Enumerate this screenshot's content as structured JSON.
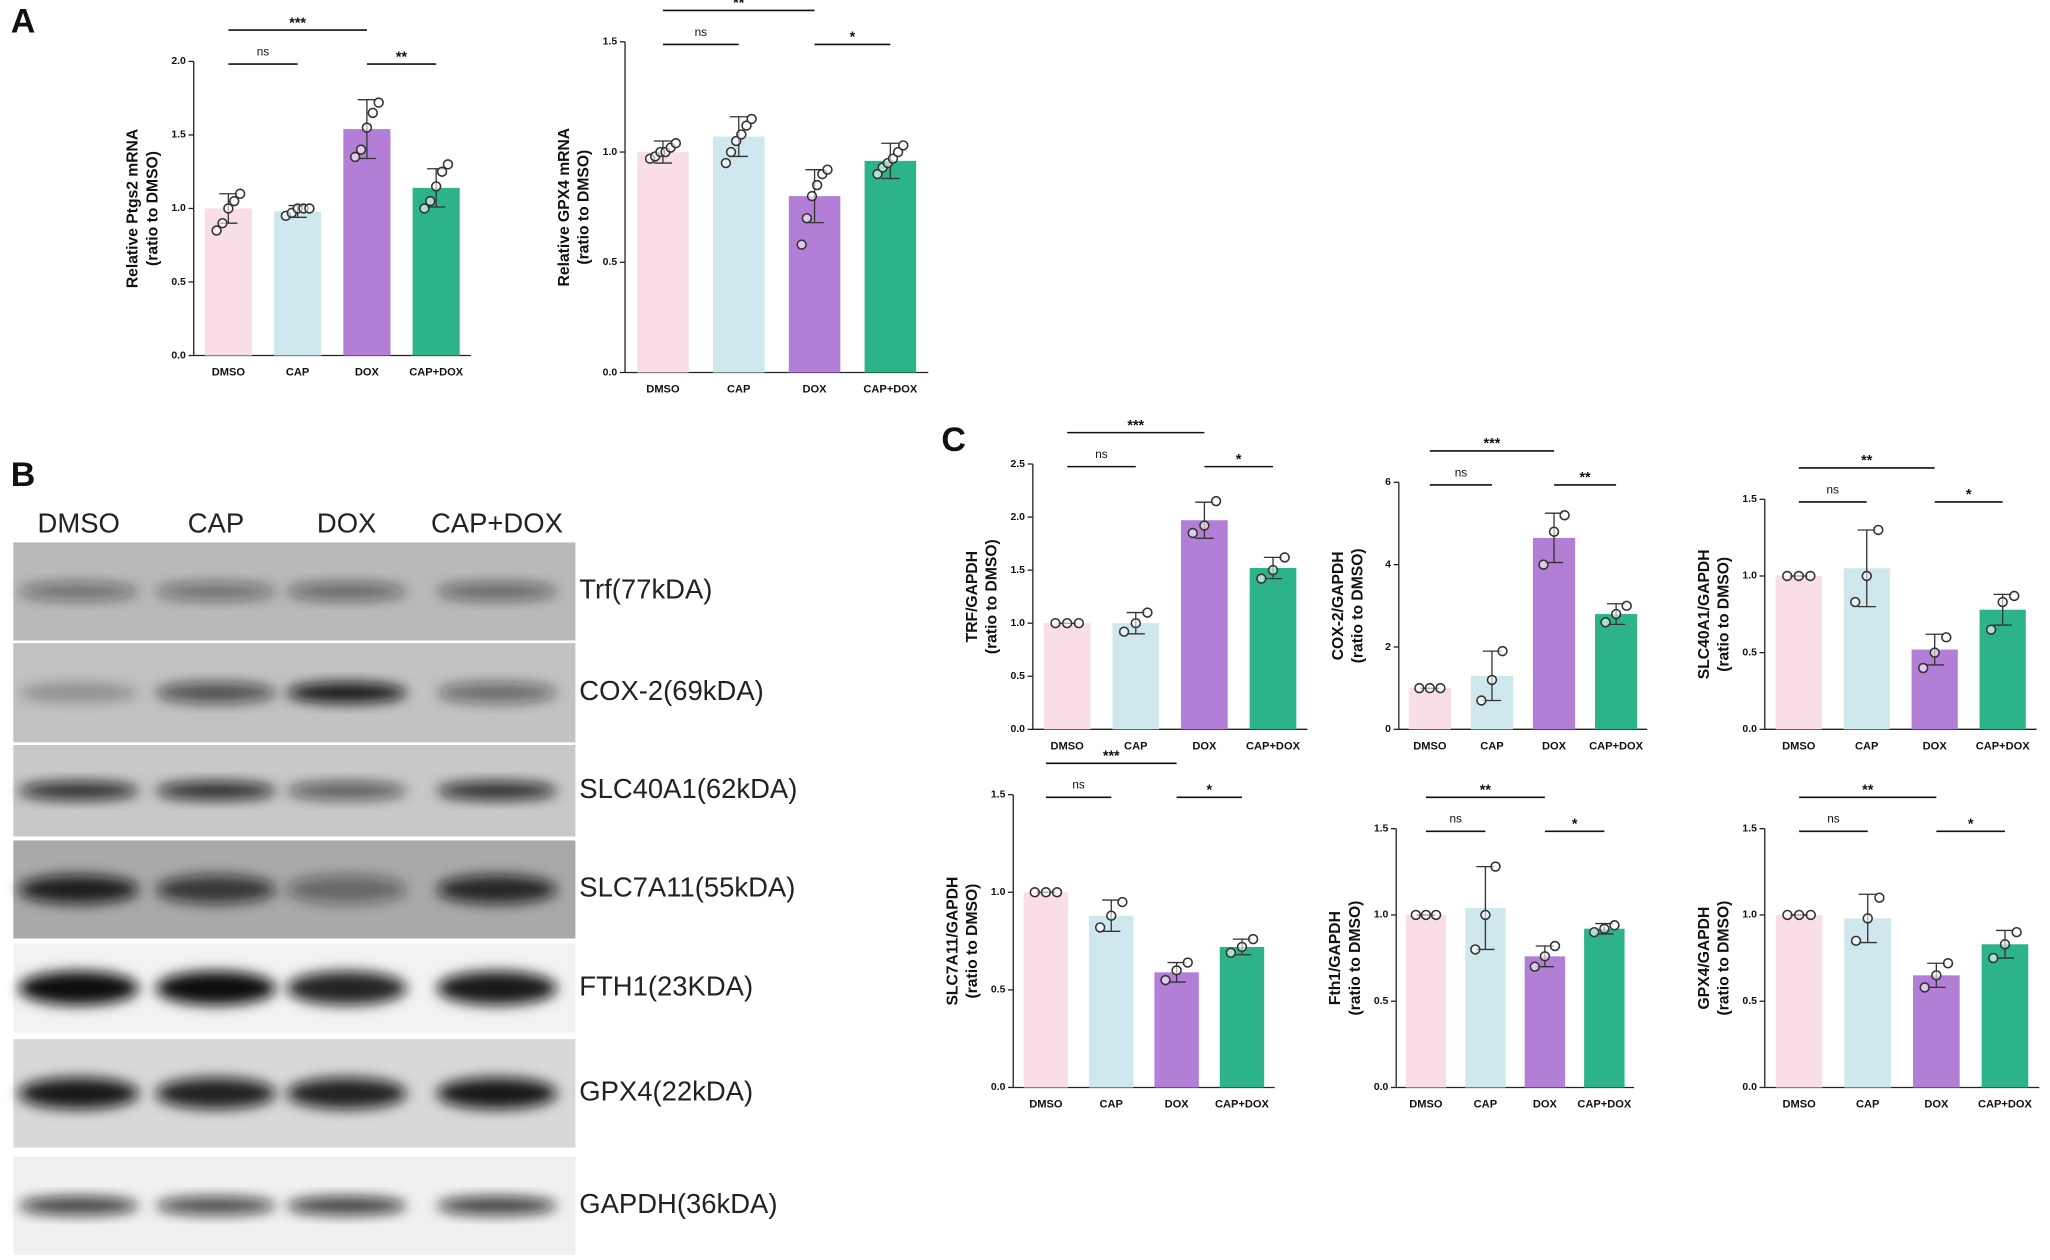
{
  "panel_labels": [
    "A",
    "B",
    "C"
  ],
  "blot": {
    "lanes": [
      "DMSO",
      "CAP",
      "DOX",
      "CAP+DOX"
    ],
    "bands": [
      "Trf(77kDA)",
      "COX-2(69kDA)",
      "SLC40A1(62kDA)",
      "SLC7A11(55kDA)",
      "FTH1(23KDA)",
      "GPX4(22kDA)",
      "GAPDH(36kDA)"
    ]
  },
  "chart_data": [
    {
      "type": "bar",
      "ylabel": [
        "Relative Ptgs2 mRNA",
        "(ratio to DMSO)"
      ],
      "categories": [
        "DMSO",
        "CAP",
        "DOX",
        "CAP+DOX"
      ],
      "colors": [
        "#f9dde9",
        "#cfe8ee",
        "#b27ed6",
        "#2db38a"
      ],
      "values": [
        1.0,
        0.98,
        1.54,
        1.14
      ],
      "errors": [
        0.1,
        0.04,
        0.2,
        0.13
      ],
      "points": [
        [
          0.85,
          0.9,
          1.0,
          1.05,
          1.1
        ],
        [
          0.95,
          0.97,
          1.0,
          1.0,
          1.0
        ],
        [
          1.35,
          1.4,
          1.55,
          1.65,
          1.72
        ],
        [
          1.0,
          1.05,
          1.15,
          1.25,
          1.3
        ]
      ],
      "ylim": [
        0,
        2.0
      ],
      "yticks": [
        {
          "value": 0,
          "label": "0.0"
        },
        {
          "value": 0.5,
          "label": "0.5"
        },
        {
          "value": 1,
          "label": "1.0"
        },
        {
          "value": 1.5,
          "label": "1.5"
        },
        {
          "value": 2,
          "label": "2.0"
        }
      ],
      "significance": [
        {
          "from": 0,
          "to": 1,
          "label": "ns"
        },
        {
          "from": 0,
          "to": 2,
          "label": "***"
        },
        {
          "from": 2,
          "to": 3,
          "label": "**"
        }
      ]
    },
    {
      "type": "bar",
      "ylabel": [
        "Relative GPX4 mRNA",
        "(ratio to DMSO)"
      ],
      "categories": [
        "DMSO",
        "CAP",
        "DOX",
        "CAP+DOX"
      ],
      "colors": [
        "#f9dde9",
        "#cfe8ee",
        "#b27ed6",
        "#2db38a"
      ],
      "values": [
        1.0,
        1.07,
        0.8,
        0.96
      ],
      "errors": [
        0.05,
        0.09,
        0.12,
        0.08
      ],
      "points": [
        [
          0.97,
          0.98,
          1.0,
          1.0,
          1.02,
          1.04
        ],
        [
          0.95,
          1.0,
          1.05,
          1.08,
          1.12,
          1.15
        ],
        [
          0.58,
          0.7,
          0.8,
          0.85,
          0.9,
          0.92
        ],
        [
          0.9,
          0.93,
          0.95,
          0.97,
          1.0,
          1.03
        ]
      ],
      "ylim": [
        0,
        1.5
      ],
      "yticks": [
        {
          "value": 0,
          "label": "0.0"
        },
        {
          "value": 0.5,
          "label": "0.5"
        },
        {
          "value": 1,
          "label": "1.0"
        },
        {
          "value": 1.5,
          "label": "1.5"
        }
      ],
      "significance": [
        {
          "from": 0,
          "to": 1,
          "label": "ns"
        },
        {
          "from": 0,
          "to": 2,
          "label": "**"
        },
        {
          "from": 2,
          "to": 3,
          "label": "*"
        }
      ]
    },
    {
      "type": "bar",
      "ylabel": [
        "TRF/GAPDH",
        "(ratio to DMSO)"
      ],
      "categories": [
        "DMSO",
        "CAP",
        "DOX",
        "CAP+DOX"
      ],
      "colors": [
        "#f9dde9",
        "#cfe8ee",
        "#b27ed6",
        "#2db38a"
      ],
      "values": [
        1.0,
        1.0,
        1.97,
        1.52
      ],
      "errors": [
        0,
        0.1,
        0.17,
        0.1
      ],
      "points": [
        [
          1,
          1,
          1
        ],
        [
          0.92,
          1.0,
          1.1
        ],
        [
          1.85,
          1.92,
          2.15
        ],
        [
          1.42,
          1.5,
          1.62
        ]
      ],
      "ylim": [
        0,
        2.5
      ],
      "yticks": [
        {
          "value": 0,
          "label": "0.0"
        },
        {
          "value": 0.5,
          "label": "0.5"
        },
        {
          "value": 1,
          "label": "1.0"
        },
        {
          "value": 1.5,
          "label": "1.5"
        },
        {
          "value": 2,
          "label": "2.0"
        },
        {
          "value": 2.5,
          "label": "2.5"
        }
      ],
      "significance": [
        {
          "from": 0,
          "to": 1,
          "label": "ns"
        },
        {
          "from": 0,
          "to": 2,
          "label": "***"
        },
        {
          "from": 2,
          "to": 3,
          "label": "*"
        }
      ]
    },
    {
      "type": "bar",
      "ylabel": [
        "COX-2/GAPDH",
        "(ratio to DMSO)"
      ],
      "categories": [
        "DMSO",
        "CAP",
        "DOX",
        "CAP+DOX"
      ],
      "colors": [
        "#f9dde9",
        "#cfe8ee",
        "#b27ed6",
        "#2db38a"
      ],
      "values": [
        1.0,
        1.3,
        4.65,
        2.8
      ],
      "errors": [
        0,
        0.6,
        0.6,
        0.25
      ],
      "points": [
        [
          1,
          1,
          1
        ],
        [
          0.7,
          1.2,
          1.9
        ],
        [
          4.0,
          4.8,
          5.2
        ],
        [
          2.6,
          2.8,
          3.0
        ]
      ],
      "ylim": [
        0,
        6
      ],
      "yticks": [
        0,
        2,
        4,
        6
      ],
      "significance": [
        {
          "from": 0,
          "to": 1,
          "label": "ns"
        },
        {
          "from": 0,
          "to": 2,
          "label": "***"
        },
        {
          "from": 2,
          "to": 3,
          "label": "**"
        }
      ]
    },
    {
      "type": "bar",
      "ylabel": [
        "SLC40A1/GAPDH",
        "(ratio to DMSO)"
      ],
      "categories": [
        "DMSO",
        "CAP",
        "DOX",
        "CAP+DOX"
      ],
      "colors": [
        "#f9dde9",
        "#cfe8ee",
        "#b27ed6",
        "#2db38a"
      ],
      "values": [
        1.0,
        1.05,
        0.52,
        0.78
      ],
      "errors": [
        0,
        0.25,
        0.1,
        0.1
      ],
      "points": [
        [
          1,
          1,
          1
        ],
        [
          0.83,
          1.0,
          1.3
        ],
        [
          0.4,
          0.5,
          0.6
        ],
        [
          0.65,
          0.83,
          0.87
        ]
      ],
      "ylim": [
        0,
        1.5
      ],
      "yticks": [
        {
          "value": 0,
          "label": "0.0"
        },
        {
          "value": 0.5,
          "label": "0.5"
        },
        {
          "value": 1,
          "label": "1.0"
        },
        {
          "value": 1.5,
          "label": "1.5"
        }
      ],
      "significance": [
        {
          "from": 0,
          "to": 1,
          "label": "ns"
        },
        {
          "from": 0,
          "to": 2,
          "label": "**"
        },
        {
          "from": 2,
          "to": 3,
          "label": "*"
        }
      ]
    },
    {
      "type": "bar",
      "ylabel": [
        "SLC7A11/GAPDH",
        "(ratio to DMSO)"
      ],
      "categories": [
        "DMSO",
        "CAP",
        "DOX",
        "CAP+DOX"
      ],
      "colors": [
        "#f9dde9",
        "#cfe8ee",
        "#b27ed6",
        "#2db38a"
      ],
      "values": [
        1.0,
        0.88,
        0.59,
        0.72
      ],
      "errors": [
        0,
        0.08,
        0.05,
        0.04
      ],
      "points": [
        [
          1,
          1,
          1
        ],
        [
          0.82,
          0.88,
          0.95
        ],
        [
          0.55,
          0.6,
          0.64
        ],
        [
          0.69,
          0.72,
          0.76
        ]
      ],
      "ylim": [
        0,
        1.5
      ],
      "yticks": [
        {
          "value": 0,
          "label": "0.0"
        },
        {
          "value": 0.5,
          "label": "0.5"
        },
        {
          "value": 1,
          "label": "1.0"
        },
        {
          "value": 1.5,
          "label": "1.5"
        }
      ],
      "significance": [
        {
          "from": 0,
          "to": 1,
          "label": "ns"
        },
        {
          "from": 0,
          "to": 2,
          "label": "***"
        },
        {
          "from": 2,
          "to": 3,
          "label": "*"
        }
      ]
    },
    {
      "type": "bar",
      "ylabel": [
        "Fth1/GAPDH",
        "(ratio to DMSO)"
      ],
      "categories": [
        "DMSO",
        "CAP",
        "DOX",
        "CAP+DOX"
      ],
      "colors": [
        "#f9dde9",
        "#cfe8ee",
        "#b27ed6",
        "#2db38a"
      ],
      "values": [
        1.0,
        1.04,
        0.76,
        0.92
      ],
      "errors": [
        0,
        0.24,
        0.06,
        0.03
      ],
      "points": [
        [
          1,
          1,
          1
        ],
        [
          0.8,
          1.0,
          1.28
        ],
        [
          0.7,
          0.76,
          0.82
        ],
        [
          0.9,
          0.92,
          0.94
        ]
      ],
      "ylim": [
        0,
        1.5
      ],
      "yticks": [
        {
          "value": 0,
          "label": "0.0"
        },
        {
          "value": 0.5,
          "label": "0.5"
        },
        {
          "value": 1,
          "label": "1.0"
        },
        {
          "value": 1.5,
          "label": "1.5"
        }
      ],
      "significance": [
        {
          "from": 0,
          "to": 1,
          "label": "ns"
        },
        {
          "from": 0,
          "to": 2,
          "label": "**"
        },
        {
          "from": 2,
          "to": 3,
          "label": "*"
        }
      ]
    },
    {
      "type": "bar",
      "ylabel": [
        "GPX4/GAPDH",
        "(ratio to DMSO)"
      ],
      "categories": [
        "DMSO",
        "CAP",
        "DOX",
        "CAP+DOX"
      ],
      "colors": [
        "#f9dde9",
        "#cfe8ee",
        "#b27ed6",
        "#2db38a"
      ],
      "values": [
        1.0,
        0.98,
        0.65,
        0.83
      ],
      "errors": [
        0,
        0.14,
        0.07,
        0.08
      ],
      "points": [
        [
          1,
          1,
          1
        ],
        [
          0.85,
          0.98,
          1.1
        ],
        [
          0.58,
          0.65,
          0.72
        ],
        [
          0.75,
          0.83,
          0.9
        ]
      ],
      "ylim": [
        0,
        1.5
      ],
      "yticks": [
        {
          "value": 0,
          "label": "0.0"
        },
        {
          "value": 0.5,
          "label": "0.5"
        },
        {
          "value": 1,
          "label": "1.0"
        },
        {
          "value": 1.5,
          "label": "1.5"
        }
      ],
      "significance": [
        {
          "from": 0,
          "to": 1,
          "label": "ns"
        },
        {
          "from": 0,
          "to": 2,
          "label": "**"
        },
        {
          "from": 2,
          "to": 3,
          "label": "*"
        }
      ]
    }
  ]
}
